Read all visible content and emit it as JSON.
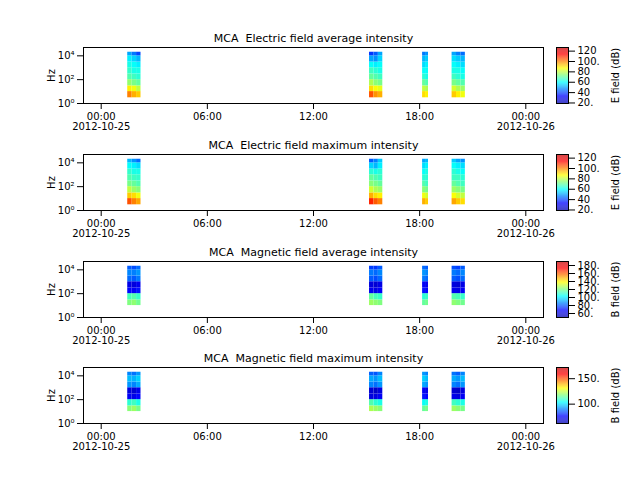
{
  "chart_data": [
    {
      "type": "heatmap",
      "title": "MCA  Electric field average intensity",
      "ylabel": "Hz",
      "log": "y",
      "xlim": [
        "2012-10-24T23:00",
        "2012-10-26T01:00"
      ],
      "xticks": [
        {
          "value": "2012-10-25T00:00",
          "label": "00:00\n2012-10-25"
        },
        {
          "value": "2012-10-25T06:00",
          "label": "06:00"
        },
        {
          "value": "2012-10-25T12:00",
          "label": "12:00"
        },
        {
          "value": "2012-10-25T18:00",
          "label": "18:00"
        },
        {
          "value": "2012-10-26T00:00",
          "label": "00:00\n2012-10-26"
        }
      ],
      "ylim": [
        1,
        50000
      ],
      "yticks": [
        {
          "value": 1,
          "label": "10⁰"
        },
        {
          "value": 100,
          "label": "10²"
        },
        {
          "value": 10000,
          "label": "10⁴"
        }
      ],
      "x_bins": [
        [
          "2012-10-25T01:30",
          "2012-10-25T01:45"
        ],
        [
          "2012-10-25T01:45",
          "2012-10-25T02:00"
        ],
        [
          "2012-10-25T02:00",
          "2012-10-25T02:15"
        ],
        [
          "2012-10-25T15:10",
          "2012-10-25T15:25"
        ],
        [
          "2012-10-25T15:25",
          "2012-10-25T15:40"
        ],
        [
          "2012-10-25T15:40",
          "2012-10-25T15:55"
        ],
        [
          "2012-10-25T18:10",
          "2012-10-25T18:20"
        ],
        [
          "2012-10-25T18:20",
          "2012-10-25T18:30"
        ],
        [
          "2012-10-25T19:50",
          "2012-10-25T20:05"
        ],
        [
          "2012-10-25T20:05",
          "2012-10-25T20:20"
        ],
        [
          "2012-10-25T20:20",
          "2012-10-25T20:35"
        ]
      ],
      "y_bins": [
        3,
        10,
        30,
        100,
        300,
        1000,
        3000,
        10000,
        20000
      ],
      "cells": [
        [
          100,
          88,
          75,
          68,
          65,
          62,
          58,
          50
        ],
        [
          95,
          85,
          72,
          66,
          62,
          60,
          55,
          45
        ],
        [
          92,
          80,
          70,
          64,
          62,
          58,
          52,
          40
        ],
        [
          105,
          90,
          78,
          70,
          66,
          60,
          50,
          38
        ],
        [
          98,
          86,
          74,
          68,
          64,
          58,
          48,
          42
        ],
        [
          95,
          84,
          72,
          66,
          62,
          60,
          55,
          50
        ],
        [
          90,
          80,
          70,
          64,
          60,
          56,
          52,
          45
        ],
        [
          88,
          78,
          68,
          62,
          60,
          58,
          54,
          48
        ],
        [
          92,
          82,
          72,
          66,
          62,
          60,
          56,
          50
        ],
        [
          88,
          78,
          70,
          64,
          62,
          58,
          54,
          46
        ],
        [
          85,
          76,
          68,
          62,
          60,
          56,
          52,
          44
        ]
      ],
      "colorbar": {
        "label": "E field (dB)",
        "range": [
          19,
          127
        ],
        "ticks": [
          {
            "value": 20,
            "label": "20."
          },
          40,
          60,
          80,
          {
            "value": 100,
            "label": "100."
          },
          120
        ]
      }
    },
    {
      "type": "heatmap",
      "title": "MCA  Electric field maximum intensity",
      "ylabel": "Hz",
      "log": "y",
      "xlim": [
        "2012-10-24T23:00",
        "2012-10-26T01:00"
      ],
      "xticks": [
        {
          "value": "2012-10-25T00:00",
          "label": "00:00\n2012-10-25"
        },
        {
          "value": "2012-10-25T06:00",
          "label": "06:00"
        },
        {
          "value": "2012-10-25T12:00",
          "label": "12:00"
        },
        {
          "value": "2012-10-25T18:00",
          "label": "18:00"
        },
        {
          "value": "2012-10-26T00:00",
          "label": "00:00\n2012-10-26"
        }
      ],
      "ylim": [
        1,
        50000
      ],
      "yticks": [
        {
          "value": 1,
          "label": "10⁰"
        },
        {
          "value": 100,
          "label": "10²"
        },
        {
          "value": 10000,
          "label": "10⁴"
        }
      ],
      "x_bins": [
        [
          "2012-10-25T01:30",
          "2012-10-25T01:45"
        ],
        [
          "2012-10-25T01:45",
          "2012-10-25T02:00"
        ],
        [
          "2012-10-25T02:00",
          "2012-10-25T02:15"
        ],
        [
          "2012-10-25T15:10",
          "2012-10-25T15:25"
        ],
        [
          "2012-10-25T15:25",
          "2012-10-25T15:40"
        ],
        [
          "2012-10-25T15:40",
          "2012-10-25T15:55"
        ],
        [
          "2012-10-25T18:10",
          "2012-10-25T18:20"
        ],
        [
          "2012-10-25T18:20",
          "2012-10-25T18:30"
        ],
        [
          "2012-10-25T19:50",
          "2012-10-25T20:05"
        ],
        [
          "2012-10-25T20:05",
          "2012-10-25T20:20"
        ],
        [
          "2012-10-25T20:20",
          "2012-10-25T20:35"
        ]
      ],
      "y_bins": [
        3,
        10,
        30,
        100,
        300,
        1000,
        3000,
        10000,
        20000
      ],
      "cells": [
        [
          105,
          92,
          80,
          72,
          68,
          65,
          60,
          52
        ],
        [
          100,
          90,
          76,
          70,
          66,
          62,
          58,
          48
        ],
        [
          96,
          85,
          74,
          68,
          65,
          62,
          56,
          44
        ],
        [
          110,
          95,
          82,
          74,
          70,
          64,
          55,
          42
        ],
        [
          104,
          90,
          78,
          72,
          68,
          62,
          52,
          46
        ],
        [
          100,
          88,
          76,
          70,
          66,
          64,
          58,
          54
        ],
        [
          95,
          85,
          74,
          68,
          64,
          60,
          56,
          50
        ],
        [
          92,
          82,
          72,
          66,
          64,
          62,
          58,
          52
        ],
        [
          96,
          86,
          76,
          70,
          66,
          64,
          60,
          54
        ],
        [
          92,
          82,
          74,
          68,
          66,
          62,
          58,
          50
        ],
        [
          90,
          80,
          72,
          66,
          64,
          60,
          56,
          48
        ]
      ],
      "colorbar": {
        "label": "E field (dB)",
        "range": [
          19,
          127
        ],
        "ticks": [
          {
            "value": 20,
            "label": "20."
          },
          40,
          60,
          80,
          {
            "value": 100,
            "label": "100."
          },
          120
        ]
      }
    },
    {
      "type": "heatmap",
      "title": "MCA  Magnetic field average intensity",
      "ylabel": "Hz",
      "log": "y",
      "xlim": [
        "2012-10-24T23:00",
        "2012-10-26T01:00"
      ],
      "xticks": [
        {
          "value": "2012-10-25T00:00",
          "label": "00:00\n2012-10-25"
        },
        {
          "value": "2012-10-25T06:00",
          "label": "06:00"
        },
        {
          "value": "2012-10-25T12:00",
          "label": "12:00"
        },
        {
          "value": "2012-10-25T18:00",
          "label": "18:00"
        },
        {
          "value": "2012-10-26T00:00",
          "label": "00:00\n2012-10-26"
        }
      ],
      "ylim": [
        1,
        50000
      ],
      "yticks": [
        {
          "value": 1,
          "label": "10⁰"
        },
        {
          "value": 100,
          "label": "10²"
        },
        {
          "value": 10000,
          "label": "10⁴"
        }
      ],
      "x_bins": [
        [
          "2012-10-25T01:30",
          "2012-10-25T01:45"
        ],
        [
          "2012-10-25T01:45",
          "2012-10-25T02:00"
        ],
        [
          "2012-10-25T02:00",
          "2012-10-25T02:15"
        ],
        [
          "2012-10-25T15:10",
          "2012-10-25T15:25"
        ],
        [
          "2012-10-25T15:25",
          "2012-10-25T15:40"
        ],
        [
          "2012-10-25T15:40",
          "2012-10-25T15:55"
        ],
        [
          "2012-10-25T18:10",
          "2012-10-25T18:20"
        ],
        [
          "2012-10-25T18:20",
          "2012-10-25T18:30"
        ],
        [
          "2012-10-25T19:50",
          "2012-10-25T20:05"
        ],
        [
          "2012-10-25T20:05",
          "2012-10-25T20:20"
        ],
        [
          "2012-10-25T20:20",
          "2012-10-25T20:35"
        ]
      ],
      "y_bins": [
        3,
        10,
        30,
        100,
        300,
        1000,
        3000,
        10000,
        20000
      ],
      "cells": [
        [
          null,
          120,
          112,
          68,
          62,
          82,
          86,
          80
        ],
        [
          null,
          122,
          114,
          66,
          60,
          80,
          85,
          78
        ],
        [
          null,
          118,
          110,
          70,
          64,
          84,
          88,
          82
        ],
        [
          null,
          124,
          116,
          64,
          60,
          80,
          84,
          76
        ],
        [
          null,
          122,
          112,
          62,
          58,
          78,
          82,
          75
        ],
        [
          null,
          120,
          110,
          66,
          62,
          82,
          86,
          80
        ],
        [
          null,
          116,
          108,
          70,
          66,
          84,
          88,
          82
        ],
        [
          null,
          118,
          110,
          68,
          64,
          82,
          86,
          80
        ],
        [
          null,
          122,
          114,
          64,
          60,
          80,
          84,
          78
        ],
        [
          null,
          120,
          112,
          62,
          58,
          78,
          82,
          76
        ],
        [
          null,
          118,
          110,
          66,
          62,
          82,
          86,
          80
        ]
      ],
      "colorbar": {
        "label": "B field (dB)",
        "range": [
          50,
          190
        ],
        "ticks": [
          {
            "value": 60,
            "label": "60."
          },
          {
            "value": 80,
            "label": "80."
          },
          {
            "value": 100,
            "label": "100."
          },
          {
            "value": 120,
            "label": "120."
          },
          {
            "value": 140,
            "label": "140."
          },
          {
            "value": 160,
            "label": "160."
          },
          {
            "value": 180,
            "label": "180."
          }
        ]
      }
    },
    {
      "type": "heatmap",
      "title": "MCA  Magnetic field maximum intensity",
      "ylabel": "Hz",
      "log": "y",
      "xlim": [
        "2012-10-24T23:00",
        "2012-10-26T01:00"
      ],
      "xticks": [
        {
          "value": "2012-10-25T00:00",
          "label": "00:00\n2012-10-25"
        },
        {
          "value": "2012-10-25T06:00",
          "label": "06:00"
        },
        {
          "value": "2012-10-25T12:00",
          "label": "12:00"
        },
        {
          "value": "2012-10-25T18:00",
          "label": "18:00"
        },
        {
          "value": "2012-10-26T00:00",
          "label": "00:00\n2012-10-26"
        }
      ],
      "ylim": [
        1,
        50000
      ],
      "yticks": [
        {
          "value": 1,
          "label": "10⁰"
        },
        {
          "value": 100,
          "label": "10²"
        },
        {
          "value": 10000,
          "label": "10⁴"
        }
      ],
      "x_bins": [
        [
          "2012-10-25T01:30",
          "2012-10-25T01:45"
        ],
        [
          "2012-10-25T01:45",
          "2012-10-25T02:00"
        ],
        [
          "2012-10-25T02:00",
          "2012-10-25T02:15"
        ],
        [
          "2012-10-25T15:10",
          "2012-10-25T15:25"
        ],
        [
          "2012-10-25T15:25",
          "2012-10-25T15:40"
        ],
        [
          "2012-10-25T15:40",
          "2012-10-25T15:55"
        ],
        [
          "2012-10-25T18:10",
          "2012-10-25T18:20"
        ],
        [
          "2012-10-25T18:20",
          "2012-10-25T18:30"
        ],
        [
          "2012-10-25T19:50",
          "2012-10-25T20:05"
        ],
        [
          "2012-10-25T20:05",
          "2012-10-25T20:20"
        ],
        [
          "2012-10-25T20:20",
          "2012-10-25T20:35"
        ]
      ],
      "y_bins": [
        3,
        10,
        30,
        100,
        300,
        1000,
        3000,
        10000,
        20000
      ],
      "cells": [
        [
          null,
          118,
          108,
          74,
          70,
          92,
          96,
          90
        ],
        [
          null,
          120,
          110,
          72,
          68,
          90,
          95,
          88
        ],
        [
          null,
          116,
          106,
          76,
          72,
          94,
          98,
          92
        ],
        [
          null,
          122,
          112,
          70,
          68,
          90,
          94,
          86
        ],
        [
          null,
          120,
          108,
          70,
          66,
          88,
          92,
          85
        ],
        [
          null,
          118,
          106,
          74,
          70,
          92,
          96,
          90
        ],
        [
          null,
          114,
          104,
          78,
          74,
          94,
          98,
          92
        ],
        [
          null,
          116,
          106,
          76,
          72,
          92,
          96,
          90
        ],
        [
          null,
          120,
          110,
          72,
          68,
          90,
          94,
          88
        ],
        [
          null,
          118,
          108,
          70,
          66,
          88,
          92,
          86
        ],
        [
          null,
          116,
          106,
          74,
          70,
          92,
          96,
          90
        ]
      ],
      "colorbar": {
        "label": "B field (dB)",
        "range": [
          62,
          172
        ],
        "ticks": [
          {
            "value": 100,
            "label": "100."
          },
          {
            "value": 150,
            "label": "150."
          }
        ]
      }
    }
  ]
}
